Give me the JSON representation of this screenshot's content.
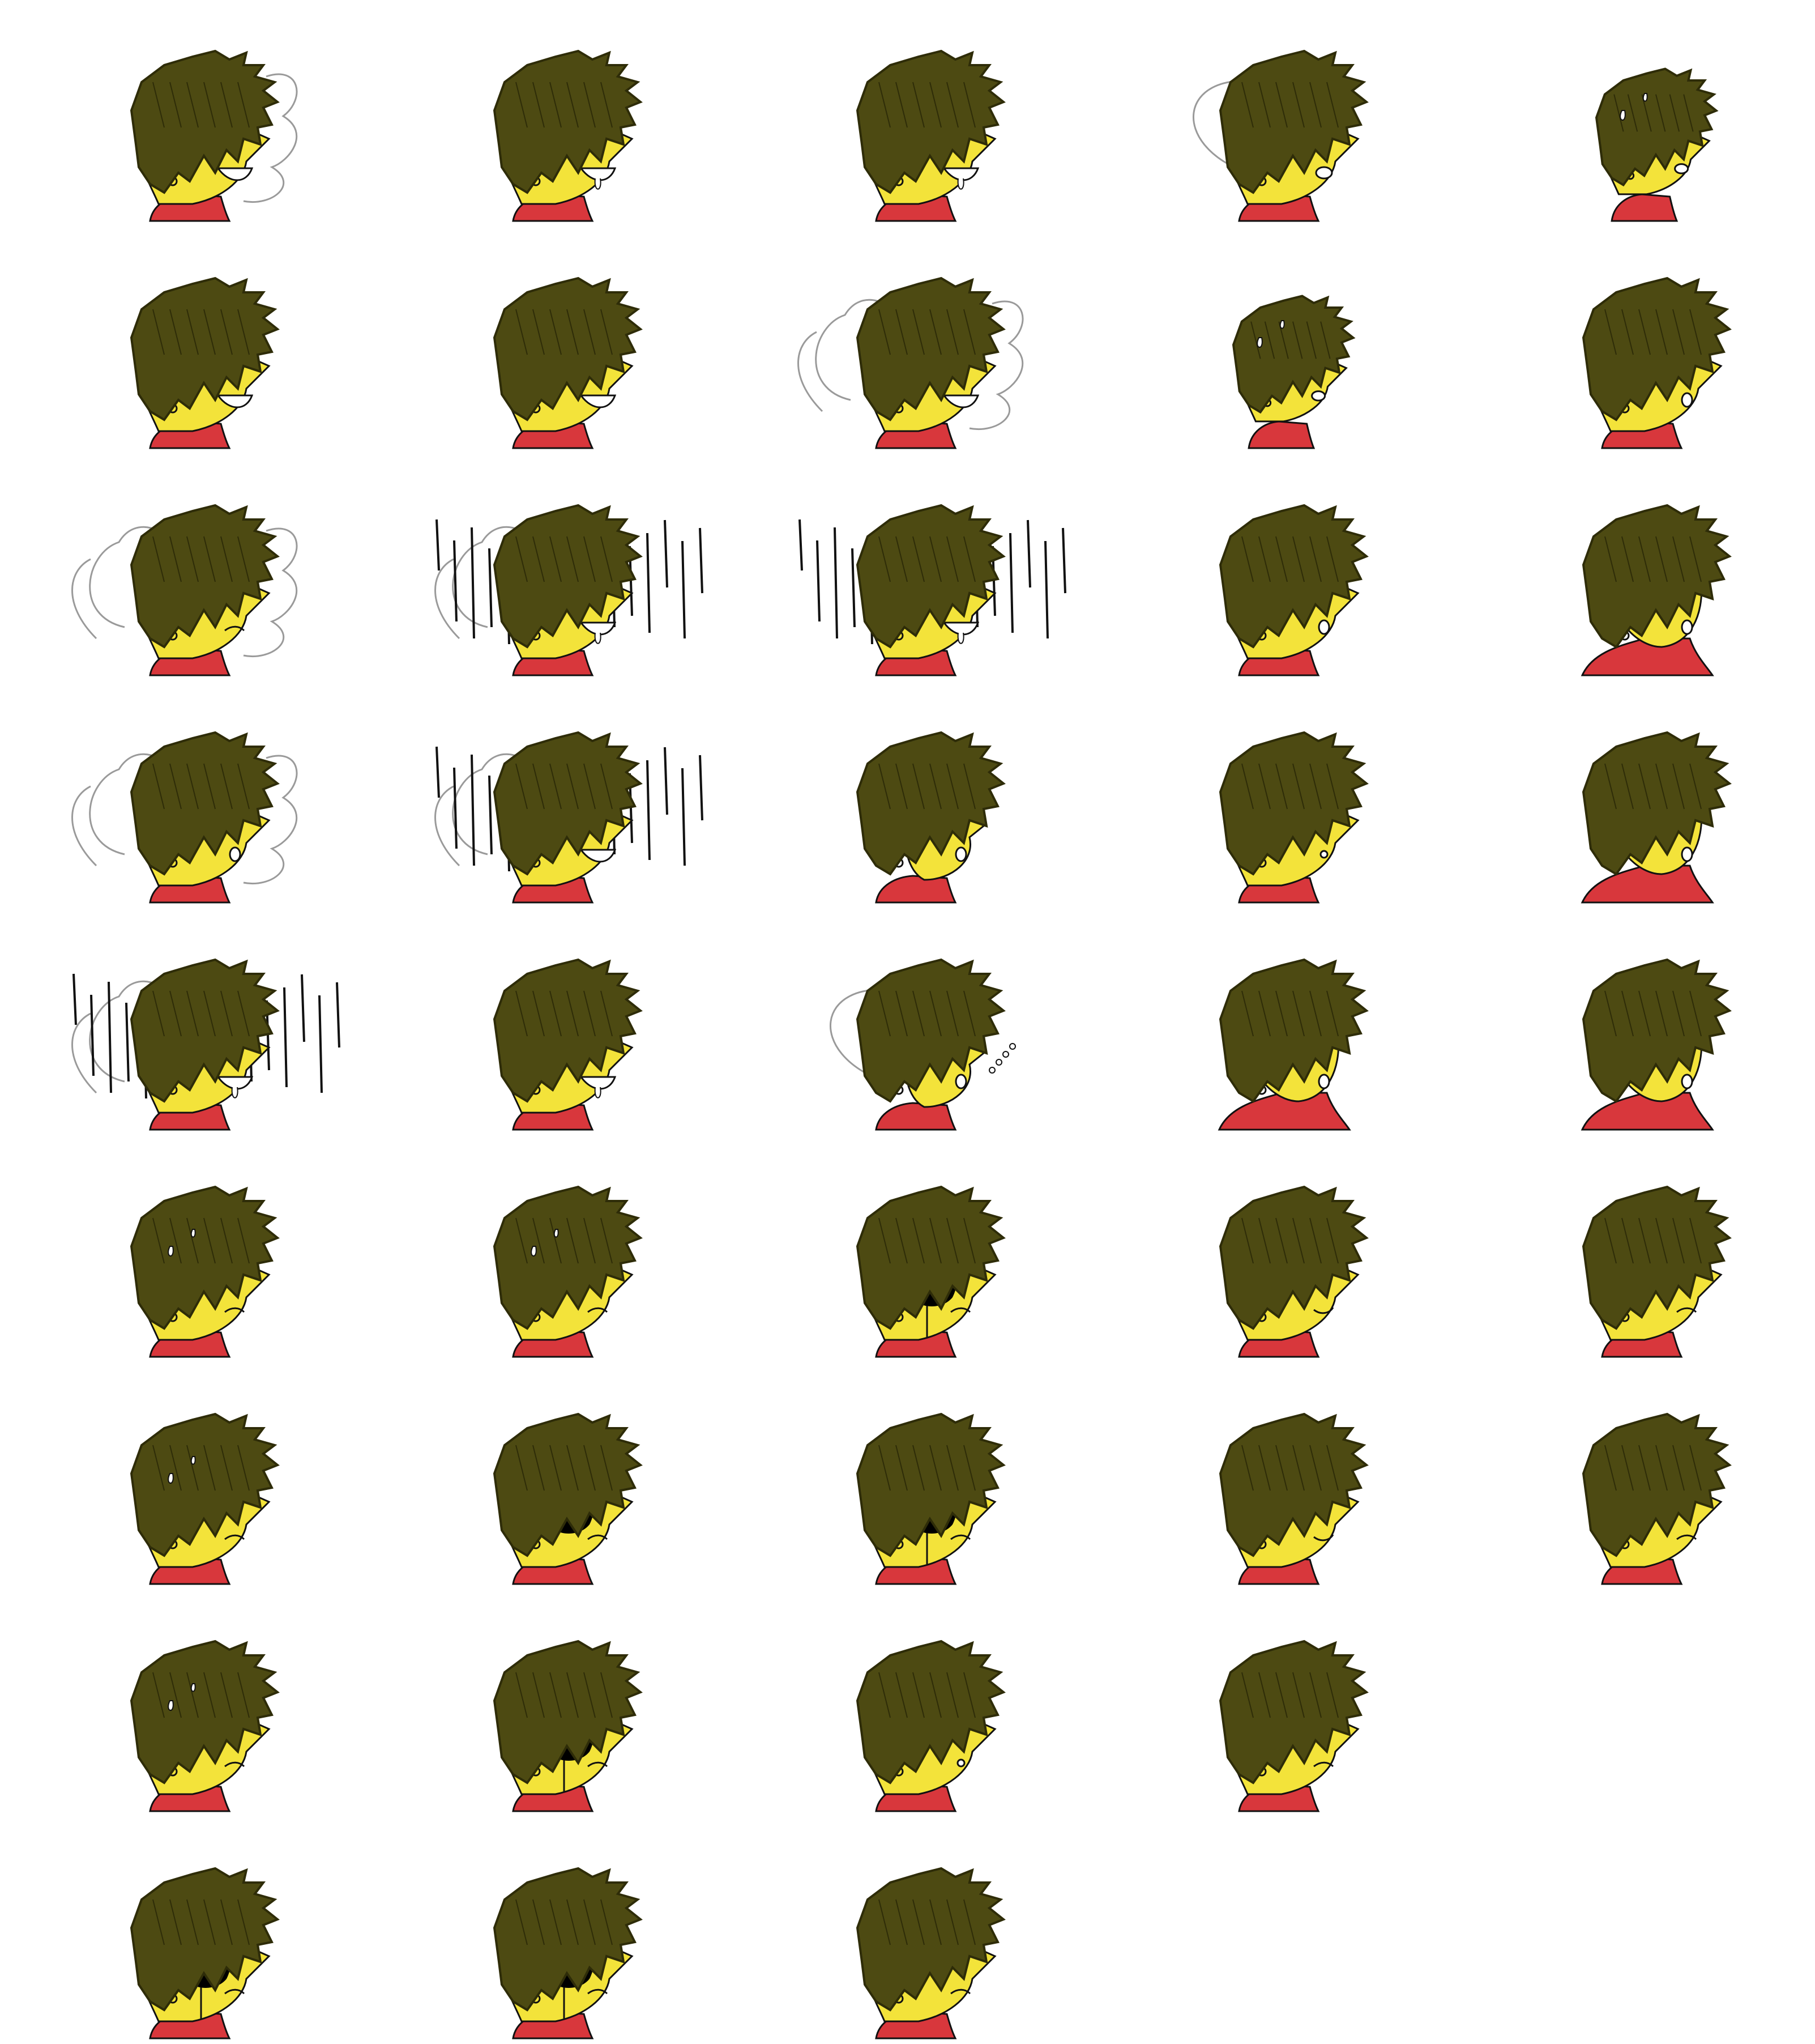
{
  "sheet": {
    "background": "#ffffff",
    "colors": {
      "hair": "#4d4a12",
      "hair_dark": "#2e2c08",
      "skin": "#f3e33a",
      "sweater": "#d8373c",
      "line": "#111111",
      "shadow": "#000000",
      "smoke": "#9a9a9a"
    },
    "row_counts": [
      5,
      5,
      5,
      5,
      5,
      5,
      5,
      4,
      3
    ],
    "frames": [
      {
        "name": "grin-smoke-right",
        "expr": "grin",
        "pose": "side",
        "fx": [
          "smoke-right"
        ]
      },
      {
        "name": "grin-drool",
        "expr": "grin-drool",
        "pose": "side",
        "fx": []
      },
      {
        "name": "grin-drool-2",
        "expr": "grin-drool",
        "pose": "side",
        "fx": []
      },
      {
        "name": "dash-motion-blur",
        "expr": "shout",
        "pose": "lean",
        "fx": [
          "motion-blur"
        ]
      },
      {
        "name": "tilt-sweat-shout",
        "expr": "shout",
        "pose": "small-tilt",
        "fx": [
          "sweat"
        ]
      },
      {
        "name": "grin-wide",
        "expr": "grin",
        "pose": "side",
        "fx": []
      },
      {
        "name": "grin-wink",
        "expr": "grin-wink",
        "pose": "side",
        "fx": []
      },
      {
        "name": "grimace-smoke-both",
        "expr": "grimace",
        "pose": "side",
        "fx": [
          "smoke-left",
          "smoke-right"
        ]
      },
      {
        "name": "small-sweat-shout",
        "expr": "shout",
        "pose": "small-tilt",
        "fx": [
          "sweat"
        ]
      },
      {
        "name": "surprised-open",
        "expr": "o-mouth",
        "pose": "side",
        "fx": []
      },
      {
        "name": "frown-smoke-both",
        "expr": "frown",
        "pose": "side",
        "fx": [
          "smoke-left",
          "smoke-right"
        ]
      },
      {
        "name": "grin-rain-smoke",
        "expr": "grin-drool",
        "pose": "side",
        "fx": [
          "rain",
          "smoke-left"
        ]
      },
      {
        "name": "grin-rain",
        "expr": "grin-drool",
        "pose": "side",
        "fx": [
          "rain"
        ]
      },
      {
        "name": "open-mouth-side",
        "expr": "o-mouth",
        "pose": "side",
        "fx": []
      },
      {
        "name": "turned-surprised",
        "expr": "o-mouth",
        "pose": "turn",
        "fx": []
      },
      {
        "name": "oh-smoke-both",
        "expr": "o-mouth",
        "pose": "side",
        "fx": [
          "smoke-left",
          "smoke-right"
        ]
      },
      {
        "name": "grin-rain-smoke-2",
        "expr": "grin",
        "pose": "side",
        "fx": [
          "rain",
          "smoke-left"
        ]
      },
      {
        "name": "round-head-oh",
        "expr": "o-mouth",
        "pose": "round",
        "fx": []
      },
      {
        "name": "neutral-oh",
        "expr": "small-o",
        "pose": "side",
        "fx": []
      },
      {
        "name": "front-oh",
        "expr": "o-mouth",
        "pose": "front",
        "fx": []
      },
      {
        "name": "grin-rain-heavy",
        "expr": "grin-drool",
        "pose": "side",
        "fx": [
          "rain",
          "smoke-left"
        ]
      },
      {
        "name": "grin-side",
        "expr": "grin-drool",
        "pose": "side",
        "fx": []
      },
      {
        "name": "round-puff",
        "expr": "puff",
        "pose": "round",
        "fx": [
          "bubbles",
          "motion-blur"
        ]
      },
      {
        "name": "turned-oh-2",
        "expr": "o-mouth",
        "pose": "turn",
        "fx": []
      },
      {
        "name": "front-oh-2",
        "expr": "o-mouth",
        "pose": "front",
        "fx": []
      },
      {
        "name": "worried-sweat",
        "expr": "frown",
        "pose": "side",
        "fx": [
          "sweat"
        ]
      },
      {
        "name": "worried-sweat-2",
        "expr": "frown",
        "pose": "side",
        "fx": [
          "sweat"
        ]
      },
      {
        "name": "shadow-eyes-drip",
        "expr": "shadow-frown",
        "pose": "side",
        "fx": [
          "shadow",
          "drip"
        ]
      },
      {
        "name": "smirk",
        "expr": "smirk",
        "pose": "side",
        "fx": []
      },
      {
        "name": "annoyed",
        "expr": "frown",
        "pose": "side",
        "fx": []
      },
      {
        "name": "nervous-sweat",
        "expr": "frown",
        "pose": "side",
        "fx": [
          "sweat"
        ]
      },
      {
        "name": "shadow-eyes",
        "expr": "shadow-frown",
        "pose": "side",
        "fx": [
          "shadow"
        ]
      },
      {
        "name": "shadow-eyes-tear",
        "expr": "shadow-frown",
        "pose": "side",
        "fx": [
          "shadow",
          "drip"
        ]
      },
      {
        "name": "smirk-2",
        "expr": "smirk",
        "pose": "side",
        "fx": []
      },
      {
        "name": "half-lid",
        "expr": "frown",
        "pose": "side",
        "fx": []
      },
      {
        "name": "sad-sweat",
        "expr": "frown",
        "pose": "side",
        "fx": [
          "sweat"
        ]
      },
      {
        "name": "shadow-eyes-drip-2",
        "expr": "shadow-frown",
        "pose": "side",
        "fx": [
          "shadow",
          "drip"
        ]
      },
      {
        "name": "neutral-small-o",
        "expr": "small-o",
        "pose": "side",
        "fx": []
      },
      {
        "name": "closed-eye",
        "expr": "frown",
        "pose": "side",
        "fx": []
      },
      {
        "name": "shadow-eyes-3",
        "expr": "shadow-frown",
        "pose": "side",
        "fx": [
          "shadow",
          "drip"
        ]
      },
      {
        "name": "shadow-eyes-4",
        "expr": "shadow-frown",
        "pose": "side",
        "fx": [
          "shadow",
          "drip"
        ]
      },
      {
        "name": "stern",
        "expr": "frown",
        "pose": "side",
        "fx": []
      }
    ]
  }
}
